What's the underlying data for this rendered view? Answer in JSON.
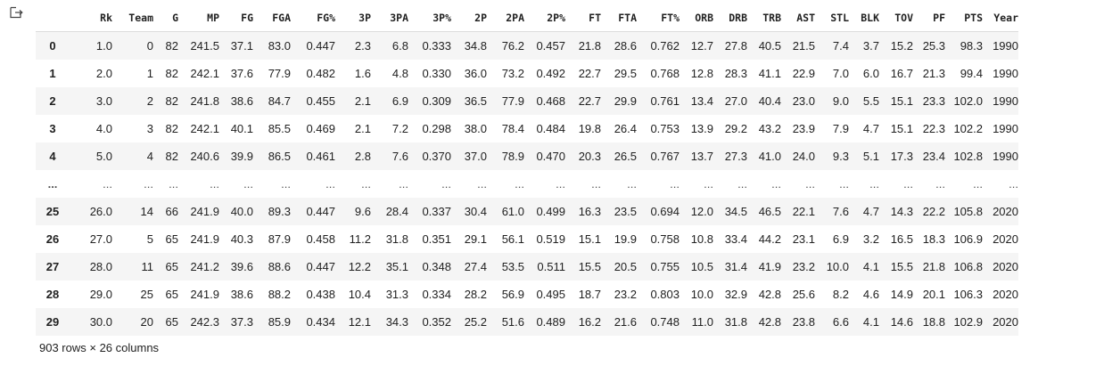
{
  "icons": {
    "output": "output-redirect-icon"
  },
  "table": {
    "columns": [
      "",
      "Rk",
      "Team",
      "G",
      "MP",
      "FG",
      "FGA",
      "FG%",
      "3P",
      "3PA",
      "3P%",
      "2P",
      "2PA",
      "2P%",
      "FT",
      "FTA",
      "FT%",
      "ORB",
      "DRB",
      "TRB",
      "AST",
      "STL",
      "BLK",
      "TOV",
      "PF",
      "PTS",
      "Year"
    ],
    "rows": [
      [
        "0",
        "1.0",
        "0",
        "82",
        "241.5",
        "37.1",
        "83.0",
        "0.447",
        "2.3",
        "6.8",
        "0.333",
        "34.8",
        "76.2",
        "0.457",
        "21.8",
        "28.6",
        "0.762",
        "12.7",
        "27.8",
        "40.5",
        "21.5",
        "7.4",
        "3.7",
        "15.2",
        "25.3",
        "98.3",
        "1990"
      ],
      [
        "1",
        "2.0",
        "1",
        "82",
        "242.1",
        "37.6",
        "77.9",
        "0.482",
        "1.6",
        "4.8",
        "0.330",
        "36.0",
        "73.2",
        "0.492",
        "22.7",
        "29.5",
        "0.768",
        "12.8",
        "28.3",
        "41.1",
        "22.9",
        "7.0",
        "6.0",
        "16.7",
        "21.3",
        "99.4",
        "1990"
      ],
      [
        "2",
        "3.0",
        "2",
        "82",
        "241.8",
        "38.6",
        "84.7",
        "0.455",
        "2.1",
        "6.9",
        "0.309",
        "36.5",
        "77.9",
        "0.468",
        "22.7",
        "29.9",
        "0.761",
        "13.4",
        "27.0",
        "40.4",
        "23.0",
        "9.0",
        "5.5",
        "15.1",
        "23.3",
        "102.0",
        "1990"
      ],
      [
        "3",
        "4.0",
        "3",
        "82",
        "242.1",
        "40.1",
        "85.5",
        "0.469",
        "2.1",
        "7.2",
        "0.298",
        "38.0",
        "78.4",
        "0.484",
        "19.8",
        "26.4",
        "0.753",
        "13.9",
        "29.2",
        "43.2",
        "23.9",
        "7.9",
        "4.7",
        "15.1",
        "22.3",
        "102.2",
        "1990"
      ],
      [
        "4",
        "5.0",
        "4",
        "82",
        "240.6",
        "39.9",
        "86.5",
        "0.461",
        "2.8",
        "7.6",
        "0.370",
        "37.0",
        "78.9",
        "0.470",
        "20.3",
        "26.5",
        "0.767",
        "13.7",
        "27.3",
        "41.0",
        "24.0",
        "9.3",
        "5.1",
        "17.3",
        "23.4",
        "102.8",
        "1990"
      ],
      [
        "...",
        "...",
        "...",
        "...",
        "...",
        "...",
        "...",
        "...",
        "...",
        "...",
        "...",
        "...",
        "...",
        "...",
        "...",
        "...",
        "...",
        "...",
        "...",
        "...",
        "...",
        "...",
        "...",
        "...",
        "...",
        "...",
        "..."
      ],
      [
        "25",
        "26.0",
        "14",
        "66",
        "241.9",
        "40.0",
        "89.3",
        "0.447",
        "9.6",
        "28.4",
        "0.337",
        "30.4",
        "61.0",
        "0.499",
        "16.3",
        "23.5",
        "0.694",
        "12.0",
        "34.5",
        "46.5",
        "22.1",
        "7.6",
        "4.7",
        "14.3",
        "22.2",
        "105.8",
        "2020"
      ],
      [
        "26",
        "27.0",
        "5",
        "65",
        "241.9",
        "40.3",
        "87.9",
        "0.458",
        "11.2",
        "31.8",
        "0.351",
        "29.1",
        "56.1",
        "0.519",
        "15.1",
        "19.9",
        "0.758",
        "10.8",
        "33.4",
        "44.2",
        "23.1",
        "6.9",
        "3.2",
        "16.5",
        "18.3",
        "106.9",
        "2020"
      ],
      [
        "27",
        "28.0",
        "11",
        "65",
        "241.2",
        "39.6",
        "88.6",
        "0.447",
        "12.2",
        "35.1",
        "0.348",
        "27.4",
        "53.5",
        "0.511",
        "15.5",
        "20.5",
        "0.755",
        "10.5",
        "31.4",
        "41.9",
        "23.2",
        "10.0",
        "4.1",
        "15.5",
        "21.8",
        "106.8",
        "2020"
      ],
      [
        "28",
        "29.0",
        "25",
        "65",
        "241.9",
        "38.6",
        "88.2",
        "0.438",
        "10.4",
        "31.3",
        "0.334",
        "28.2",
        "56.9",
        "0.495",
        "18.7",
        "23.2",
        "0.803",
        "10.0",
        "32.9",
        "42.8",
        "25.6",
        "8.2",
        "4.6",
        "14.9",
        "20.1",
        "106.3",
        "2020"
      ],
      [
        "29",
        "30.0",
        "20",
        "65",
        "242.3",
        "37.3",
        "85.9",
        "0.434",
        "12.1",
        "34.3",
        "0.352",
        "25.2",
        "51.6",
        "0.489",
        "16.2",
        "21.6",
        "0.748",
        "11.0",
        "31.8",
        "42.8",
        "23.8",
        "6.6",
        "4.1",
        "14.6",
        "18.8",
        "102.9",
        "2020"
      ]
    ]
  },
  "footer": {
    "shape_text": "903 rows × 26 columns"
  }
}
